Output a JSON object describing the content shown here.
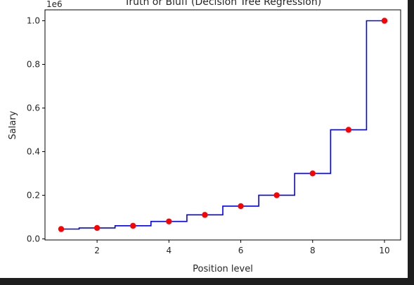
{
  "chart_data": {
    "type": "line",
    "title": "Truth or Bluff (Decision Tree Regression)",
    "xlabel": "Position level",
    "ylabel": "Salary",
    "offset_label": "1e6",
    "xlim": [
      0.55,
      10.45
    ],
    "ylim": [
      -0.005,
      1.05
    ],
    "x_ticks": [
      2,
      4,
      6,
      8,
      10
    ],
    "x_tick_labels": [
      "2",
      "4",
      "6",
      "8",
      "10"
    ],
    "y_ticks": [
      0.0,
      0.2,
      0.4,
      0.6,
      0.8,
      1.0
    ],
    "y_tick_labels": [
      "0.0",
      "0.2",
      "0.4",
      "0.6",
      "0.8",
      "1.0"
    ],
    "grid": false,
    "series": [
      {
        "kind": "scatter",
        "color": "#ff0000",
        "x": [
          1,
          2,
          3,
          4,
          5,
          6,
          7,
          8,
          9,
          10
        ],
        "y": [
          0.045,
          0.05,
          0.06,
          0.08,
          0.11,
          0.15,
          0.2,
          0.3,
          0.5,
          1.0
        ]
      },
      {
        "kind": "step",
        "color": "#0000ff",
        "x": [
          1,
          1.5,
          1.5,
          2.5,
          2.5,
          3.5,
          3.5,
          4.5,
          4.5,
          5.5,
          5.5,
          6.5,
          6.5,
          7.5,
          7.5,
          8.5,
          8.5,
          9.5,
          9.5,
          10
        ],
        "y": [
          0.045,
          0.045,
          0.05,
          0.05,
          0.06,
          0.06,
          0.08,
          0.08,
          0.11,
          0.11,
          0.15,
          0.15,
          0.2,
          0.2,
          0.3,
          0.3,
          0.5,
          0.5,
          1.0,
          1.0
        ]
      }
    ]
  }
}
